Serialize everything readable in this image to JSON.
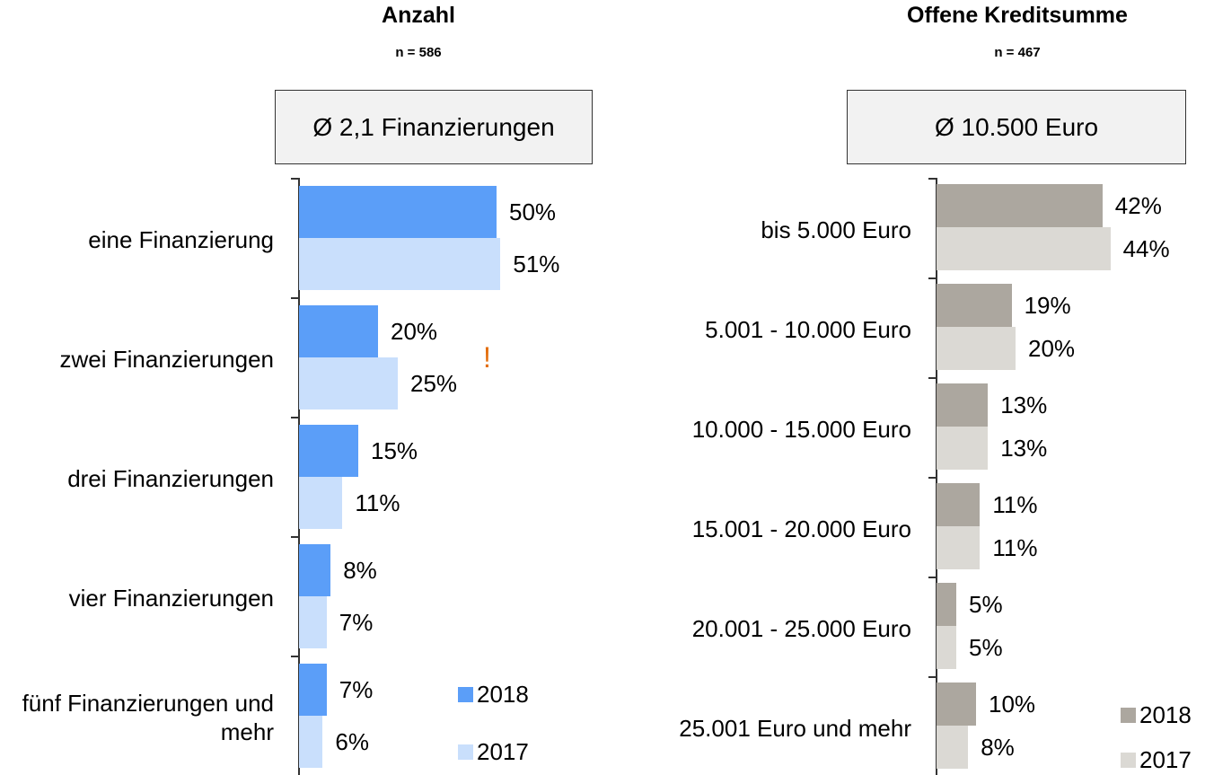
{
  "chart_data": [
    {
      "type": "bar",
      "orientation": "horizontal",
      "title": "Anzahl",
      "subtitle": "n = 586",
      "annotation": "Ø 2,1 Finanzierungen",
      "marker_annotation": "!",
      "categories": [
        "eine Finanzierung",
        "zwei Finanzierungen",
        "drei Finanzierungen",
        "vier Finanzierungen",
        "fünf Finanzierungen und mehr"
      ],
      "series": [
        {
          "name": "2018",
          "color": "#5b9ef8",
          "values": [
            50,
            20,
            15,
            8,
            7
          ],
          "value_labels": [
            "50%",
            "20%",
            "15%",
            "8%",
            "7%"
          ]
        },
        {
          "name": "2017",
          "color": "#c9dffc",
          "values": [
            51,
            25,
            11,
            7,
            6
          ],
          "value_labels": [
            "51%",
            "25%",
            "11%",
            "7%",
            "6%"
          ]
        }
      ],
      "legend": "lower right"
    },
    {
      "type": "bar",
      "orientation": "horizontal",
      "title": "Offene Kreditsumme",
      "subtitle": "n = 467",
      "annotation": "Ø 10.500 Euro",
      "categories": [
        "bis 5.000 Euro",
        "5.001 - 10.000 Euro",
        "10.000 - 15.000 Euro",
        "15.001 - 20.000 Euro",
        "20.001 - 25.000 Euro",
        "25.001 Euro und mehr"
      ],
      "series": [
        {
          "name": "2018",
          "color": "#aca79f",
          "values": [
            42,
            19,
            13,
            11,
            5,
            10
          ],
          "value_labels": [
            "42%",
            "19%",
            "13%",
            "11%",
            "5%",
            "10%"
          ]
        },
        {
          "name": "2017",
          "color": "#dbd9d4",
          "values": [
            44,
            20,
            13,
            11,
            5,
            8
          ],
          "value_labels": [
            "44%",
            "20%",
            "13%",
            "11%",
            "5%",
            "8%"
          ]
        }
      ],
      "legend": "lower right"
    }
  ]
}
